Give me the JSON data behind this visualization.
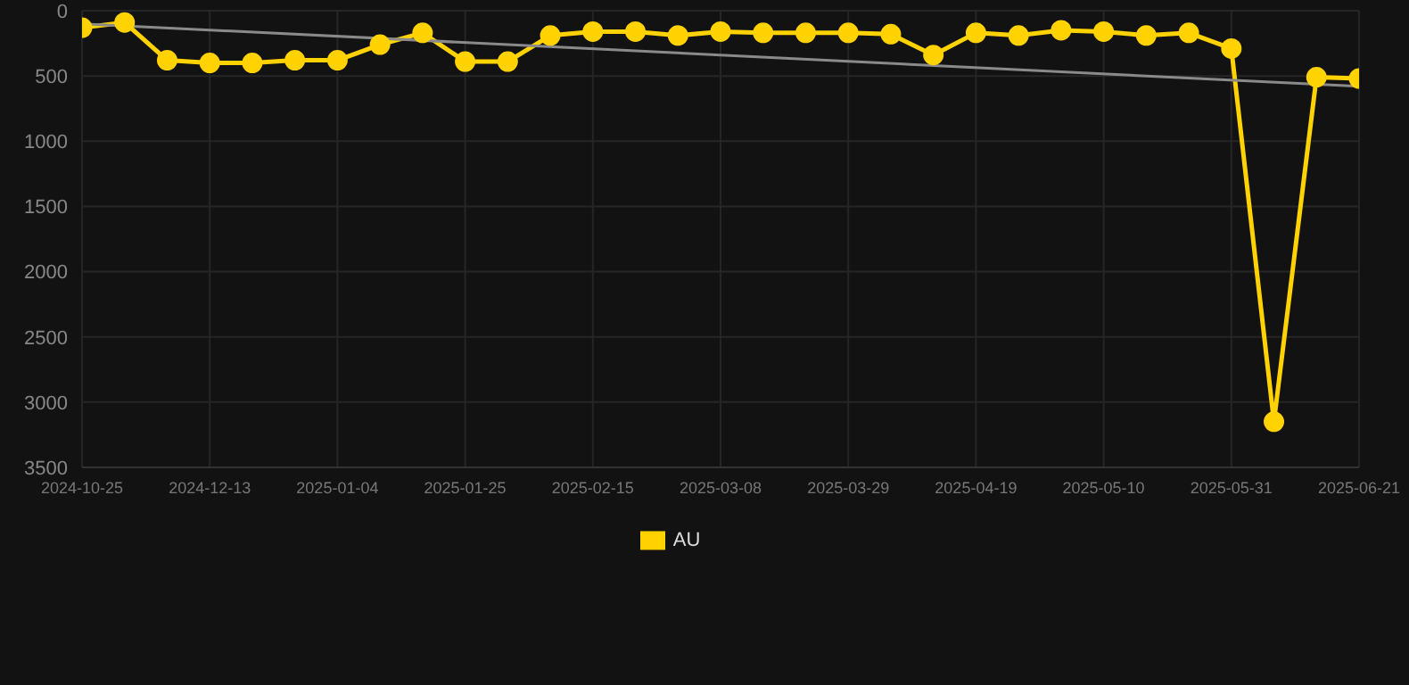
{
  "chart_data": {
    "type": "line",
    "categories": [
      "2024-10-25",
      null,
      null,
      "2024-12-13",
      null,
      null,
      "2025-01-04",
      null,
      null,
      "2025-01-25",
      null,
      null,
      "2025-02-15",
      null,
      null,
      "2025-03-08",
      null,
      null,
      "2025-03-29",
      null,
      null,
      "2025-04-19",
      null,
      null,
      "2025-05-10",
      null,
      null,
      "2025-05-31",
      null,
      null,
      "2025-06-21"
    ],
    "series": [
      {
        "name": "AU",
        "color": "#ffd200",
        "marker": "circle",
        "values": [
          130,
          90,
          380,
          400,
          400,
          380,
          380,
          260,
          170,
          390,
          390,
          190,
          160,
          160,
          190,
          160,
          170,
          170,
          170,
          180,
          340,
          170,
          190,
          150,
          160,
          190,
          170,
          290,
          3150,
          510,
          520
        ]
      },
      {
        "type": "line",
        "color": "#8a8a8a",
        "marker": "none",
        "values": [
          100,
          null,
          null,
          null,
          null,
          null,
          null,
          null,
          null,
          null,
          null,
          null,
          null,
          null,
          null,
          null,
          null,
          null,
          null,
          null,
          null,
          null,
          null,
          null,
          null,
          null,
          null,
          null,
          null,
          null,
          580
        ]
      }
    ],
    "ylim": [
      3500,
      0
    ],
    "yticks": [
      0,
      500,
      1000,
      1500,
      2000,
      2500,
      3000,
      3500
    ],
    "grid": true,
    "legend": "bottom"
  }
}
